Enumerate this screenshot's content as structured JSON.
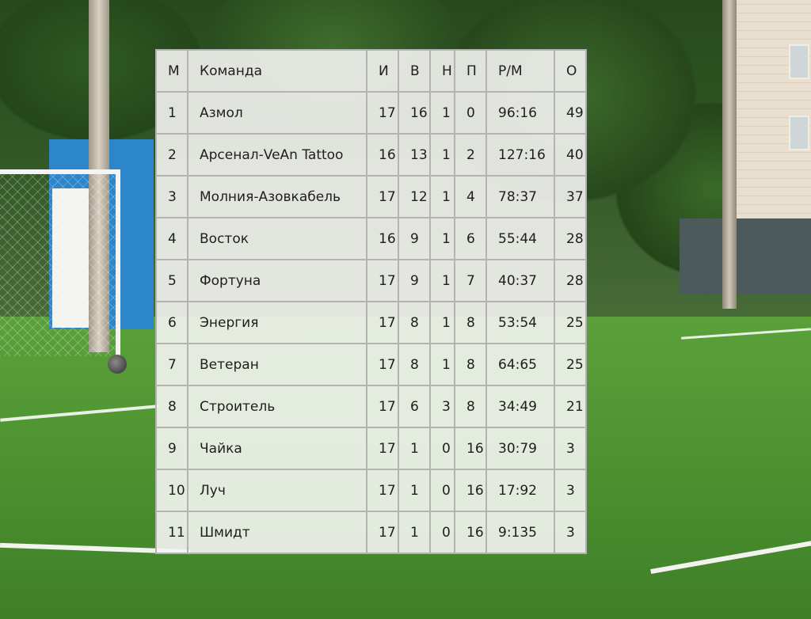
{
  "table": {
    "headers": [
      "М",
      "Команда",
      "И",
      "В",
      "Н",
      "П",
      "Р/М",
      "О"
    ],
    "rows": [
      [
        "1",
        "Азмол",
        "17",
        "16",
        "1",
        "0",
        "96:16",
        "49"
      ],
      [
        "2",
        "Арсенал-VeAn Tattoo",
        "16",
        "13",
        "1",
        "2",
        "127:16",
        "40"
      ],
      [
        "3",
        "Молния-Азовкабель",
        "17",
        "12",
        "1",
        "4",
        "78:37",
        "37"
      ],
      [
        "4",
        "Восток",
        "16",
        "9",
        "1",
        "6",
        "55:44",
        "28"
      ],
      [
        "5",
        "Фортуна",
        "17",
        "9",
        "1",
        "7",
        "40:37",
        "28"
      ],
      [
        "6",
        "Энергия",
        "17",
        "8",
        "1",
        "8",
        "53:54",
        "25"
      ],
      [
        "7",
        "Ветеран",
        "17",
        "8",
        "1",
        "8",
        "64:65",
        "25"
      ],
      [
        "8",
        "Строитель",
        "17",
        "6",
        "3",
        "8",
        "34:49",
        "21"
      ],
      [
        "9",
        "Чайка",
        "17",
        "1",
        "0",
        "16",
        " 30:79",
        "3"
      ],
      [
        "10",
        "Луч",
        "17",
        "1",
        "0",
        "16",
        "17:92",
        "3"
      ],
      [
        "11",
        "Шмидт",
        "17",
        "1",
        "0",
        "16",
        "9:135",
        "3"
      ]
    ]
  }
}
